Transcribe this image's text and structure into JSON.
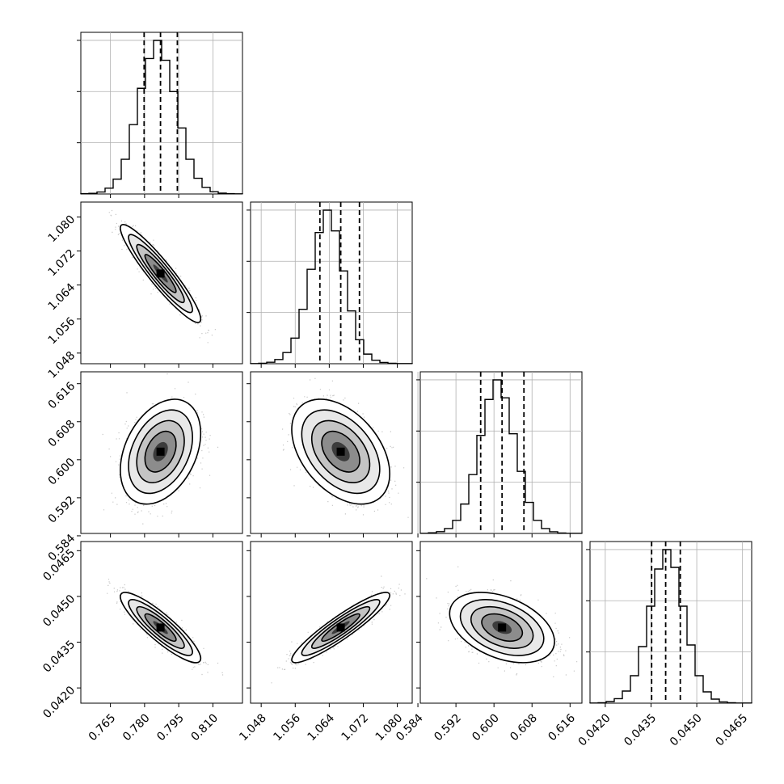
{
  "chart_data": {
    "type": "corner",
    "title": "",
    "grid": true,
    "parameters": [
      {
        "index": 0,
        "range": [
          0.752,
          0.823
        ],
        "ticks": [
          "0.765",
          "0.780",
          "0.795",
          "0.810"
        ],
        "tick_values": [
          0.765,
          0.78,
          0.795,
          0.81
        ],
        "quantiles": [
          0.7798,
          0.787,
          0.7944
        ],
        "mean": 0.787,
        "sd": 0.0072
      },
      {
        "index": 1,
        "range": [
          1.0455,
          1.0835
        ],
        "ticks": [
          "1.048",
          "1.056",
          "1.064",
          "1.072",
          "1.080"
        ],
        "tick_values": [
          1.048,
          1.056,
          1.064,
          1.072,
          1.08
        ],
        "quantiles": [
          1.0618,
          1.0667,
          1.0711
        ],
        "mean": 1.0667,
        "sd": 0.0047
      },
      {
        "index": 2,
        "range": [
          0.5845,
          0.6185
        ],
        "ticks": [
          "0.584",
          "0.592",
          "0.600",
          "0.608",
          "0.616"
        ],
        "tick_values": [
          0.584,
          0.592,
          0.6,
          0.608,
          0.616
        ],
        "quantiles": [
          0.5972,
          0.6017,
          0.6063
        ],
        "mean": 0.6017,
        "sd": 0.0045
      },
      {
        "index": 3,
        "range": [
          0.0415,
          0.0468
        ],
        "ticks": [
          "0.0420",
          "0.0435",
          "0.0450",
          "0.0465"
        ],
        "tick_values": [
          0.042,
          0.0435,
          0.045,
          0.0465
        ],
        "quantiles": [
          0.04352,
          0.04398,
          0.04446
        ],
        "mean": 0.04398,
        "sd": 0.00047
      }
    ],
    "correlations": {
      "1,0": -0.93,
      "2,0": 0.35,
      "2,1": -0.42,
      "3,0": -0.88,
      "3,1": 0.92,
      "3,2": -0.4
    },
    "histogram_bins": 20,
    "histogram_counts": [
      [
        2,
        4,
        12,
        35,
        90,
        210,
        420,
        640,
        820,
        930,
        810,
        620,
        400,
        210,
        95,
        40,
        14,
        5,
        2,
        1
      ],
      [
        1,
        3,
        9,
        26,
        70,
        160,
        340,
        590,
        820,
        960,
        830,
        580,
        330,
        150,
        60,
        22,
        8,
        3,
        1,
        1
      ],
      [
        1,
        4,
        11,
        30,
        80,
        180,
        360,
        600,
        820,
        940,
        830,
        610,
        380,
        190,
        80,
        30,
        10,
        3,
        1,
        1
      ],
      [
        1,
        3,
        10,
        28,
        75,
        170,
        350,
        600,
        830,
        950,
        840,
        600,
        360,
        170,
        70,
        25,
        8,
        3,
        1,
        1
      ]
    ]
  }
}
